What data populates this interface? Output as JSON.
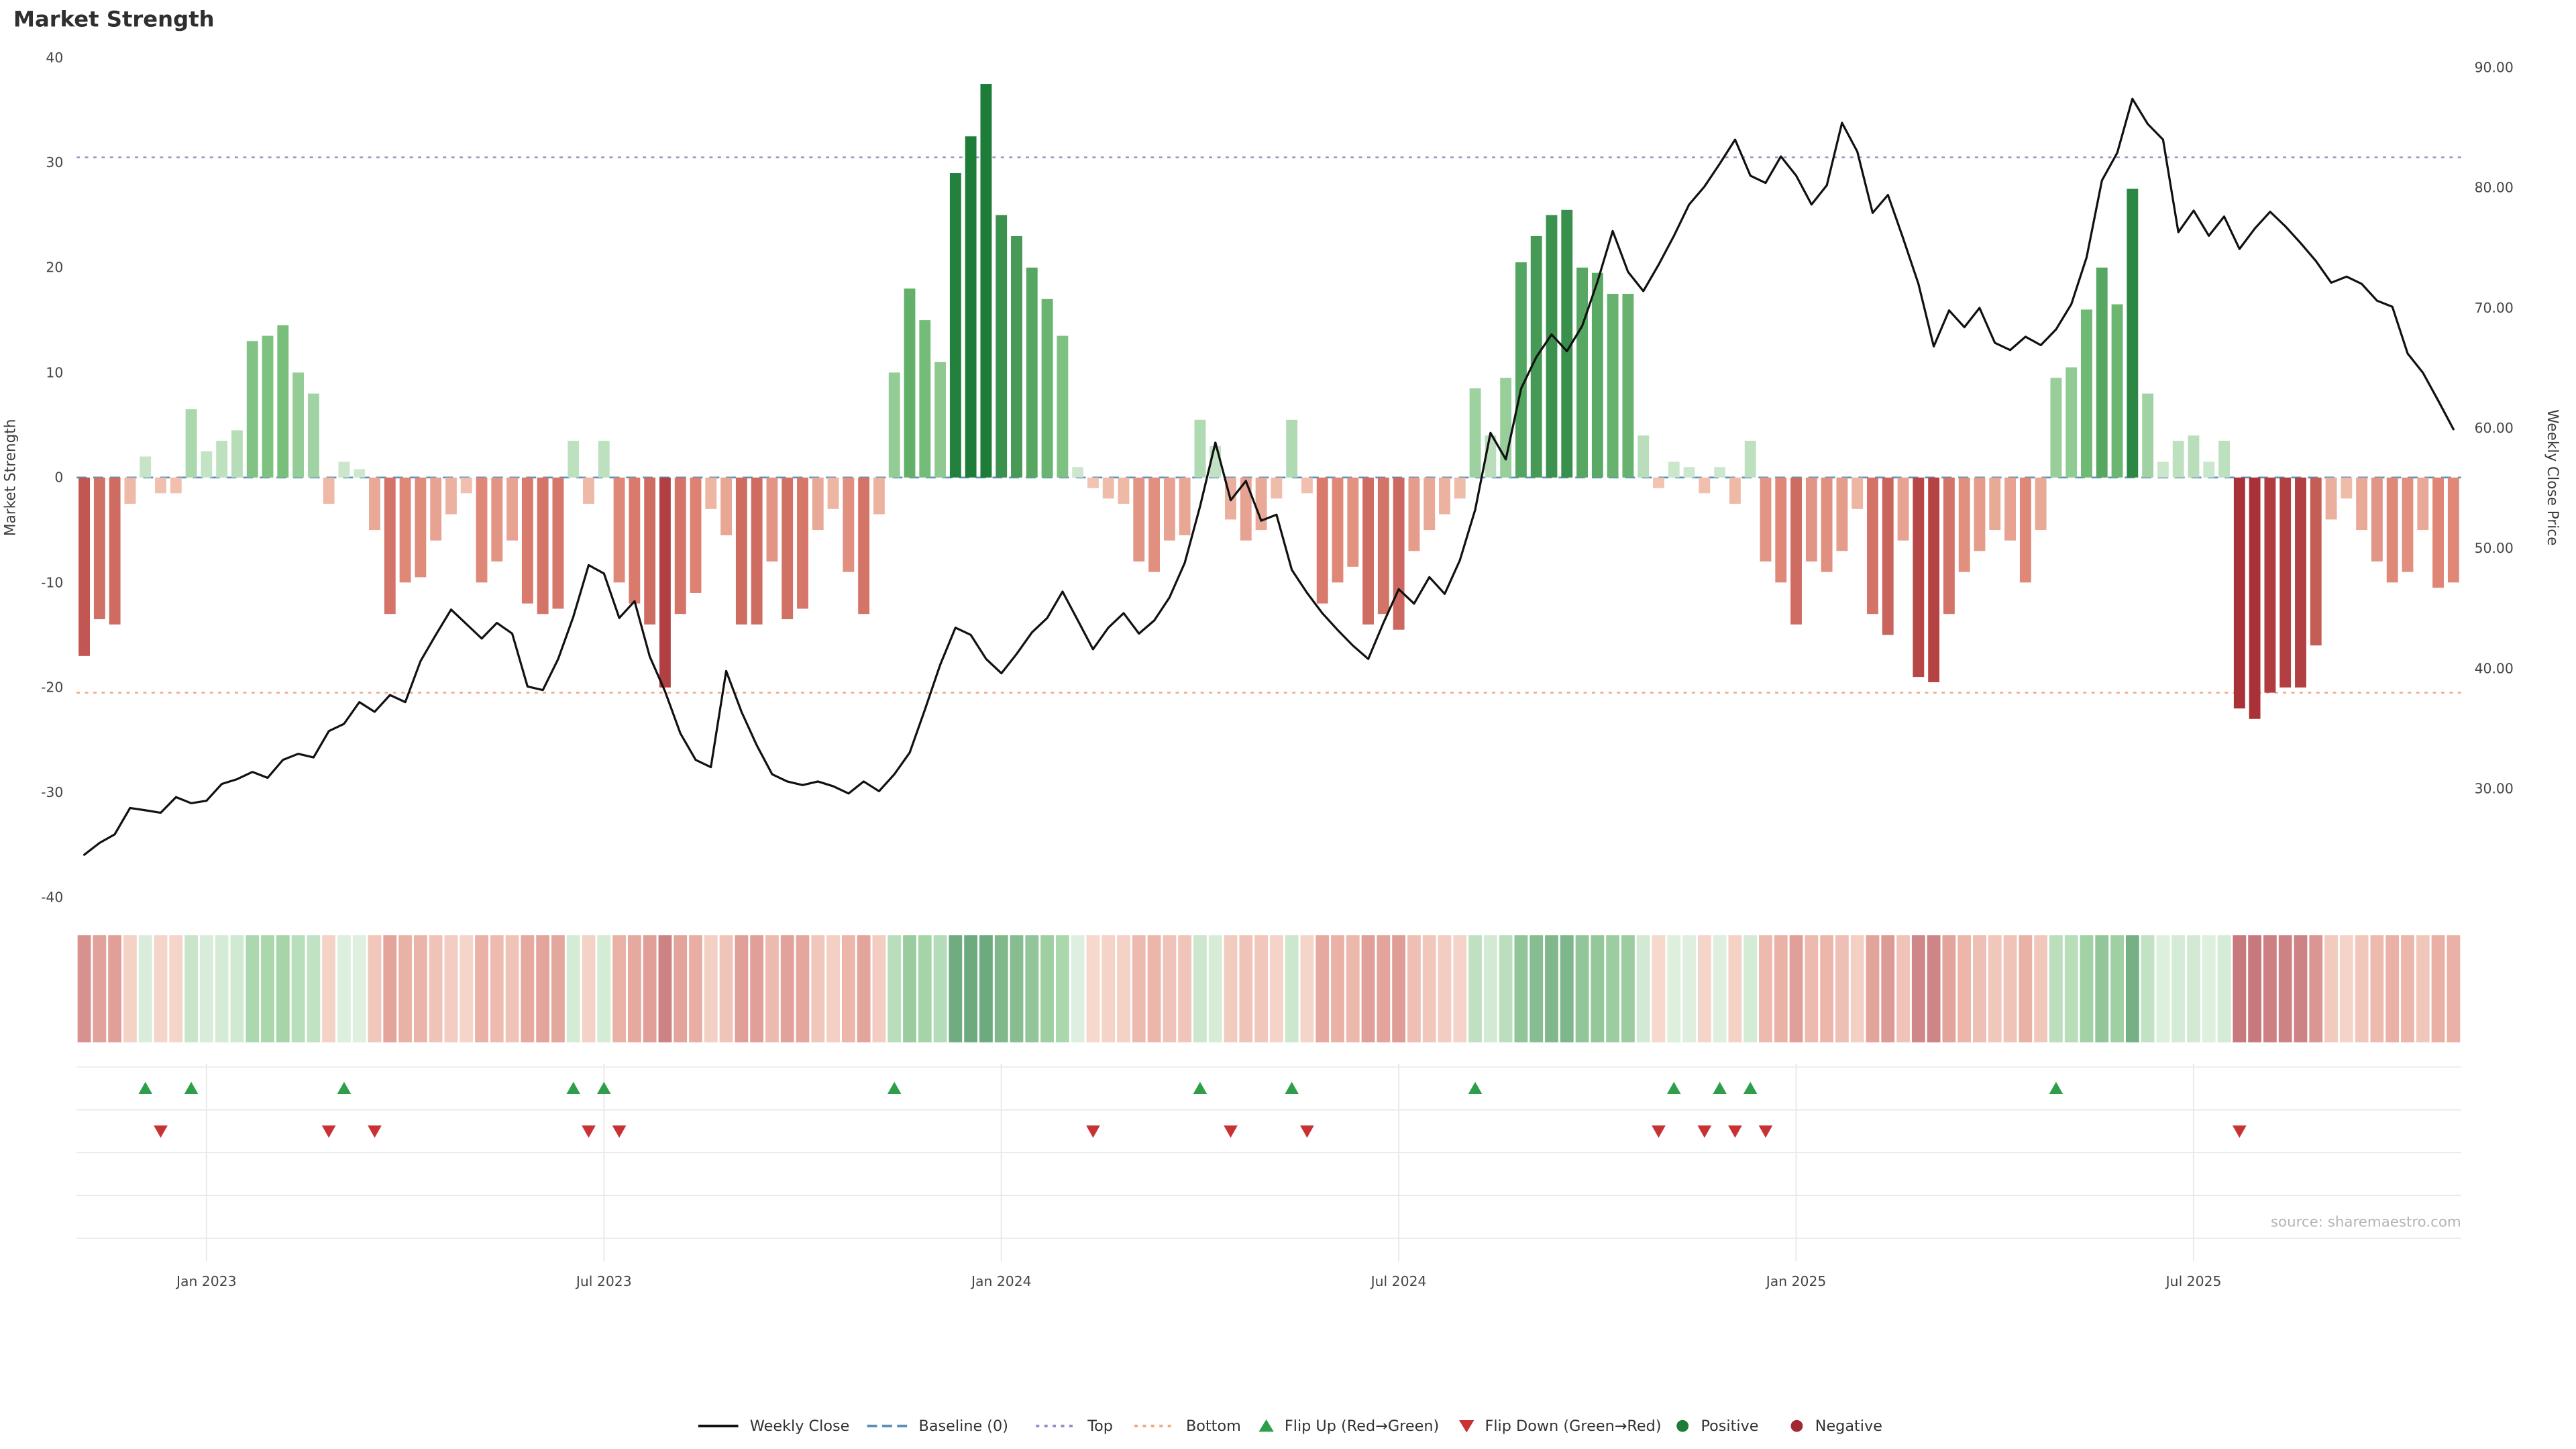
{
  "chart_data": {
    "type": "combo",
    "title": "Market Strength",
    "source": "source: sharemaestro.com",
    "left_axis": {
      "label": "Market Strength",
      "min": -40,
      "max": 40,
      "ticks": [
        40,
        30,
        20,
        10,
        0,
        -10,
        -20,
        -30,
        -40
      ]
    },
    "right_axis": {
      "label": "Weekly Close Price",
      "ticks": [
        "90.00",
        "80.00",
        "70.00",
        "60.00",
        "50.00",
        "40.00",
        "30.00"
      ],
      "tick_values": [
        90,
        80,
        70,
        60,
        50,
        40,
        30
      ]
    },
    "x_ticks": [
      {
        "index": 8,
        "label": "Jan 2023"
      },
      {
        "index": 34,
        "label": "Jul 2023"
      },
      {
        "index": 60,
        "label": "Jan 2024"
      },
      {
        "index": 86,
        "label": "Jul 2024"
      },
      {
        "index": 112,
        "label": "Jan 2025"
      },
      {
        "index": 138,
        "label": "Jul 2025"
      }
    ],
    "reference_lines": {
      "baseline": 0,
      "top": 30.5,
      "bottom": -20.5
    },
    "series": [
      {
        "name": "Market Strength",
        "type": "bar",
        "axis": "left",
        "values": [
          -17,
          -13.5,
          -14,
          -2.5,
          2,
          -1.5,
          -1.5,
          6.5,
          2.5,
          3.5,
          4.5,
          13,
          13.5,
          14.5,
          10,
          8,
          -2.5,
          1.5,
          0.8,
          -5,
          -13,
          -10,
          -9.5,
          -6,
          -3.5,
          -1.5,
          -10,
          -8,
          -6,
          -12,
          -13,
          -12.5,
          3.5,
          -2.5,
          3.5,
          -10,
          -12,
          -14,
          -20,
          -13,
          -11,
          -3,
          -5.5,
          -14,
          -14,
          -8,
          -13.5,
          -12.5,
          -5,
          -3,
          -9,
          -13,
          -3.5,
          10,
          18,
          15,
          11,
          29,
          32.5,
          37.5,
          25,
          23,
          20,
          17,
          13.5,
          1,
          -1,
          -2,
          -2.5,
          -8,
          -9,
          -6,
          -5.5,
          5.5,
          3,
          -4,
          -6,
          -5,
          -2,
          5.5,
          -1.5,
          -12,
          -10,
          -8.5,
          -14,
          -13,
          -14.5,
          -7,
          -5,
          -3.5,
          -2,
          8.5,
          4,
          9.5,
          20.5,
          23,
          25,
          25.5,
          20,
          19.5,
          17.5,
          17.5,
          4,
          -1,
          1.5,
          1,
          -1.5,
          1,
          -2.5,
          3.5,
          -8,
          -10,
          -14,
          -8,
          -9,
          -7,
          -3,
          -13,
          -15,
          -6,
          -19,
          -19.5,
          -13,
          -9,
          -7,
          -5,
          -6,
          -10,
          -5,
          9.5,
          10.5,
          16,
          20,
          16.5,
          27.5,
          8,
          1.5,
          3.5,
          4,
          1.5,
          3.5,
          -22,
          -23,
          -20.5,
          -20,
          -20,
          -16,
          -4,
          -2,
          -5,
          -8,
          -10,
          -9,
          -5,
          -10.5,
          -10
        ]
      },
      {
        "name": "Weekly Close",
        "type": "line",
        "axis": "right",
        "values": [
          24.5,
          25.5,
          26.2,
          28.4,
          28.2,
          28.0,
          29.3,
          28.8,
          29.0,
          30.4,
          30.8,
          31.4,
          30.9,
          32.4,
          32.9,
          32.6,
          34.8,
          35.4,
          37.2,
          36.4,
          37.8,
          37.2,
          40.6,
          42.8,
          44.9,
          43.7,
          42.5,
          43.8,
          42.9,
          38.5,
          38.2,
          40.8,
          44.3,
          48.6,
          47.9,
          44.2,
          45.6,
          41.0,
          38.1,
          34.6,
          32.4,
          31.8,
          39.8,
          36.4,
          33.6,
          31.2,
          30.6,
          30.3,
          30.6,
          30.2,
          29.6,
          30.6,
          29.8,
          31.2,
          33.0,
          36.6,
          40.3,
          43.4,
          42.8,
          40.8,
          39.6,
          41.2,
          43.0,
          44.2,
          46.4,
          44.0,
          41.6,
          43.4,
          44.6,
          42.9,
          44.0,
          45.9,
          48.8,
          53.5,
          58.8,
          54.0,
          55.6,
          52.3,
          52.8,
          48.2,
          46.3,
          44.6,
          43.2,
          41.9,
          40.8,
          43.8,
          46.6,
          45.4,
          47.6,
          46.2,
          49.0,
          53.2,
          59.6,
          57.4,
          63.3,
          65.9,
          67.8,
          66.4,
          68.5,
          72.2,
          76.4,
          73.0,
          71.4,
          73.6,
          76.0,
          78.6,
          80.1,
          82.0,
          84.0,
          81.0,
          80.4,
          82.6,
          81.0,
          78.6,
          80.2,
          85.4,
          83.0,
          77.9,
          79.4,
          75.8,
          72.0,
          66.8,
          69.8,
          68.4,
          70.0,
          67.1,
          66.5,
          67.6,
          66.9,
          68.2,
          70.3,
          74.2,
          80.6,
          82.9,
          87.4,
          85.3,
          84.0,
          76.3,
          78.1,
          76.0,
          77.6,
          74.9,
          76.6,
          78.0,
          76.8,
          75.4,
          73.9,
          72.1,
          72.6,
          72.0,
          70.6,
          70.1,
          66.2,
          64.6,
          62.3,
          59.9
        ]
      }
    ],
    "colors": {
      "line": "#111111",
      "baseline": "#5b8fb9",
      "top": "#8e8ec8",
      "bottom": "#f0a97e",
      "flip_up": "#2e9e4b",
      "flip_down": "#c93235",
      "positive_scale": [
        "#d3ead4",
        "#74bd78",
        "#1e7c39"
      ],
      "negative_scale": [
        "#f3c9b6",
        "#dd8272",
        "#a93137"
      ],
      "grid": "#e9e9e9"
    },
    "legend": [
      {
        "label": "Weekly Close",
        "type": "line",
        "color": "#111111"
      },
      {
        "label": "Baseline (0)",
        "type": "dashed",
        "color": "#5b8fb9"
      },
      {
        "label": "Top",
        "type": "dotted",
        "color": "#8e8ec8"
      },
      {
        "label": "Bottom",
        "type": "dotted",
        "color": "#f0a97e"
      },
      {
        "label": "Flip Up (Red→Green)",
        "type": "triangle-up",
        "color": "#2e9e4b"
      },
      {
        "label": "Flip Down (Green→Red)",
        "type": "triangle-down",
        "color": "#c93235"
      },
      {
        "label": "Positive",
        "type": "dot",
        "color": "#1d7c38"
      },
      {
        "label": "Negative",
        "type": "dot",
        "color": "#a02830"
      }
    ]
  }
}
